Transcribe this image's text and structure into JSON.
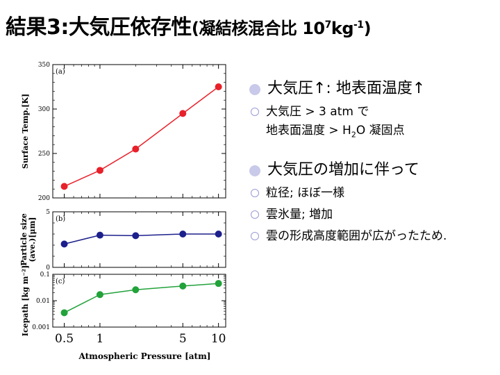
{
  "slide": {
    "title_main": "結果3:大気圧依存性",
    "title_sub_prefix": "(凝結核混合比 10",
    "title_sub_exp": "7",
    "title_sub_unit": "kg",
    "title_sub_unit_exp": "-1",
    "title_sub_close": ")"
  },
  "bullets": {
    "b1": "大気圧↑: 地表面温度↑",
    "b1_sub1_line1": "大気圧 > 3 atm で",
    "b1_sub1_line2_a": "地表面温度 > H",
    "b1_sub1_line2_sub": "2",
    "b1_sub1_line2_b": "O 凝固点",
    "b2": "大気圧の増加に伴って",
    "b2_sub1": "粒径; ほぼ一様",
    "b2_sub2": "雲氷量; 増加",
    "b2_sub3": "雲の形成高度範囲が広がったため."
  },
  "colors": {
    "temp": "#e8202a",
    "size": "#1c1f8c",
    "ice": "#22a23a"
  },
  "chart_data": [
    {
      "type": "line",
      "panel": "(a)",
      "ylabel": "Surface Temp.[K]",
      "x": [
        0.5,
        1,
        2,
        5,
        10
      ],
      "values": [
        213,
        231,
        255,
        295,
        325
      ],
      "ylim": [
        200,
        350
      ],
      "yticks": [
        200,
        250,
        300,
        350
      ],
      "xscale": "log"
    },
    {
      "type": "line",
      "panel": "(b)",
      "ylabel_line1": "Particle size",
      "ylabel_line2": "(ave.)[μm]",
      "x": [
        0.5,
        1,
        2,
        5,
        10
      ],
      "values": [
        2.1,
        2.9,
        2.85,
        3.0,
        3.0
      ],
      "ylim": [
        0,
        5
      ],
      "yticks": [
        0,
        5
      ],
      "xscale": "log"
    },
    {
      "type": "line",
      "panel": "(c)",
      "ylabel": "Icepath [kg m⁻²]",
      "x": [
        0.5,
        1,
        2,
        5,
        10
      ],
      "values": [
        0.0035,
        0.017,
        0.026,
        0.036,
        0.045
      ],
      "ylim": [
        0.001,
        0.1
      ],
      "yscale": "log",
      "ytick_labels": [
        "0.001",
        "0.01",
        "0.1"
      ],
      "yticks": [
        0.001,
        0.01,
        0.1
      ],
      "xlabel": "Atmospheric Pressure [atm]",
      "xtick_labels": [
        "0.5",
        "1",
        "5",
        "10"
      ],
      "xticks": [
        0.5,
        1,
        5,
        10
      ],
      "xscale": "log"
    }
  ]
}
